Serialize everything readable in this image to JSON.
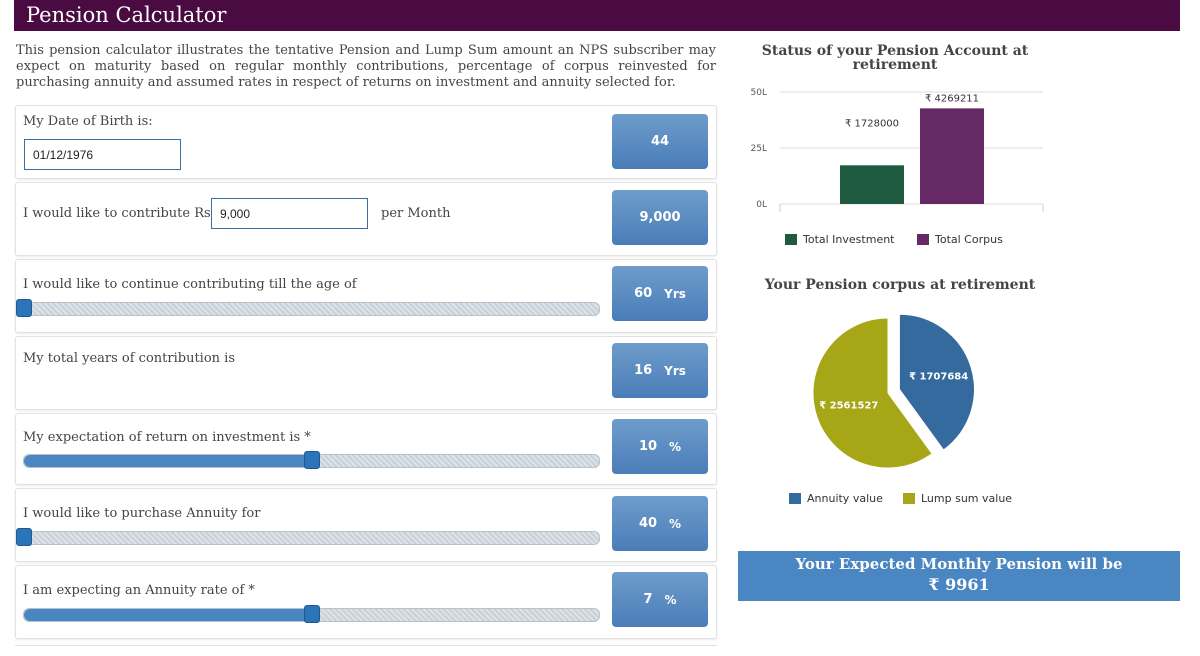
{
  "header": {
    "title": "Pension Calculator"
  },
  "intro": "This pension calculator illustrates the tentative Pension and Lump Sum amount an NPS subscriber may expect on maturity based on regular monthly contributions, percentage of corpus reinvested for purchasing annuity and assumed rates in respect of returns on investment and annuity selected for.",
  "dob": {
    "label": "My Date of Birth is:",
    "value": "01/12/1976",
    "age": "44"
  },
  "contribution": {
    "label": "I would like to contribute Rs",
    "value": "9,000",
    "suffix": "per Month",
    "display": "9,000"
  },
  "till_age": {
    "label": "I would like to continue contributing till the age of",
    "value": "60",
    "unit": "Yrs",
    "slider_fraction": 0.0
  },
  "total_years": {
    "label": "My total years of contribution is",
    "value": "16",
    "unit": "Yrs"
  },
  "return": {
    "label": "My expectation of return on investment is *",
    "value": "10",
    "unit": "%",
    "slider_fraction": 0.5
  },
  "annuity_pct": {
    "label": "I would like to purchase Annuity for",
    "value": "40",
    "unit": "%",
    "slider_fraction": 0.0
  },
  "annuity_rate": {
    "label": "I am expecting an Annuity rate of *",
    "value": "7",
    "unit": "%",
    "slider_fraction": 0.5
  },
  "status_chart": {
    "title": "Status of your Pension Account at retirement",
    "y_ticks": [
      "50L",
      "25L",
      "0L"
    ]
  },
  "corpus_chart": {
    "title": "Your Pension corpus at retirement"
  },
  "chart_data": [
    {
      "type": "bar",
      "title": "Status of your Pension Account at retirement",
      "categories": [
        "Total Investment",
        "Total Corpus"
      ],
      "values": [
        1728000,
        4269211
      ],
      "labels": [
        "₹ 1728000",
        "₹ 4269211"
      ],
      "colors": [
        "#1d5a3f",
        "#652a66"
      ],
      "ylim": [
        0,
        5000000
      ],
      "y_ticks": [
        "0L",
        "25L",
        "50L"
      ],
      "legend": "bottom"
    },
    {
      "type": "pie",
      "title": "Your Pension corpus at retirement",
      "categories": [
        "Annuity value",
        "Lump sum value"
      ],
      "values": [
        1707684,
        2561527
      ],
      "labels": [
        "₹ 1707684",
        "₹ 2561527"
      ],
      "colors": [
        "#356a9f",
        "#a6a616"
      ],
      "legend": "bottom"
    }
  ],
  "pension": {
    "label": "Your Expected Monthly Pension will be",
    "value": "₹ 9961"
  }
}
